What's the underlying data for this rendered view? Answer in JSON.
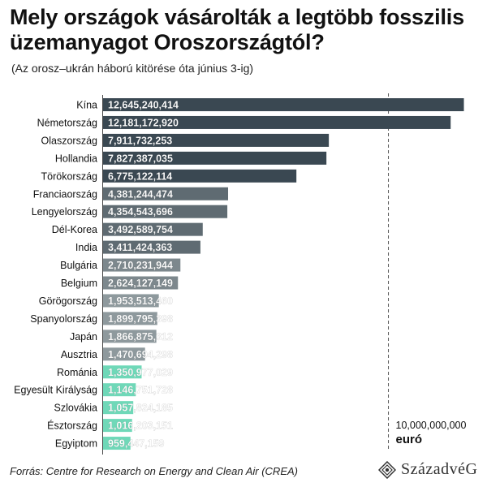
{
  "title": "Mely országok vásárolták a legtöbb fosszilis üzemanyagot Oroszországtól?",
  "subtitle": "(Az orosz–ukrán háború kitörése óta június 3-ig)",
  "source": "Forrás: Centre for Research on Energy and Clean Air (CREA)",
  "logo": "SzázadvéG",
  "chart_data": {
    "type": "bar",
    "orientation": "horizontal",
    "categories": [
      "Kína",
      "Németország",
      "Olaszország",
      "Hollandia",
      "Törökország",
      "Franciaország",
      "Lengyelország",
      "Dél-Korea",
      "India",
      "Bulgária",
      "Belgium",
      "Görögország",
      "Spanyolország",
      "Japán",
      "Ausztria",
      "Románia",
      "Egyesült Királyság",
      "Szlovákia",
      "Észtország",
      "Egyiptom"
    ],
    "values": [
      12645240414,
      12181172920,
      7911732253,
      7827387035,
      6775122114,
      4381244474,
      4354543696,
      3492589754,
      3411424363,
      2710231944,
      2624127149,
      1953513460,
      1899795398,
      1866875312,
      1470694298,
      1350977029,
      1146751728,
      1057824185,
      1016203151,
      959447159
    ],
    "value_labels": [
      "12,645,240,414",
      "12,181,172,920",
      "7,911,732,253",
      "7,827,387,035",
      "6,775,122,114",
      "4,381,244,474",
      "4,354,543,696",
      "3,492,589,754",
      "3,411,424,363",
      "2,710,231,944",
      "2,624,127,149",
      "1,953,513,460",
      "1,899,795,398",
      "1,866,875,312",
      "1,470,694,298",
      "1,350,977,029",
      "1,146,751,728",
      "1,057,824,185",
      "1,016,203,151",
      "959,447,159"
    ],
    "bar_colors": [
      "#3a4852",
      "#3a4852",
      "#3a4852",
      "#3a4852",
      "#3a4852",
      "#5f6b72",
      "#5f6b72",
      "#5f6b72",
      "#5f6b72",
      "#7d888d",
      "#7d888d",
      "#8e999d",
      "#8e999d",
      "#8e999d",
      "#8e999d",
      "#6fd8b8",
      "#6fd8b8",
      "#6fd8b8",
      "#6fd8b8",
      "#6fd8b8"
    ],
    "reference_line": {
      "value": 10000000000,
      "label": "10,000,000,000",
      "unit": "euró"
    },
    "xlim": [
      0,
      13000000000
    ],
    "label_text_color": "#ffffff"
  }
}
